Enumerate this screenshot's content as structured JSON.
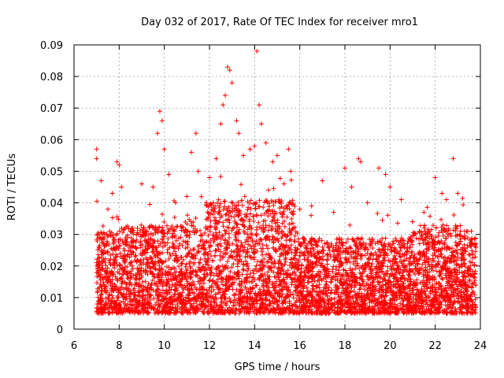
{
  "chart_data": {
    "type": "scatter",
    "title": "Day 032 of 2017, Rate Of TEC Index for receiver mro1",
    "xlabel": "GPS time / hours",
    "ylabel": "ROTI / TECUs",
    "xlim": [
      6,
      24
    ],
    "ylim": [
      0,
      0.09
    ],
    "x_ticks": [
      6,
      8,
      10,
      12,
      14,
      16,
      18,
      20,
      22,
      24
    ],
    "y_ticks": [
      0,
      0.01,
      0.02,
      0.03,
      0.04,
      0.05,
      0.06,
      0.07,
      0.08,
      0.09
    ],
    "x_tick_labels": [
      "6",
      "8",
      "10",
      "12",
      "14",
      "16",
      "18",
      "20",
      "22",
      "24"
    ],
    "y_tick_labels": [
      "0",
      "0.01",
      "0.02",
      "0.03",
      "0.04",
      "0.05",
      "0.06",
      "0.07",
      "0.08",
      "0.09"
    ],
    "grid": true,
    "marker": "+",
    "marker_color": "#ff0000",
    "data_coverage_hours": [
      7.0,
      23.8
    ],
    "series": [
      {
        "name": "ROTI",
        "points": [
          [
            7.0,
            0.057
          ],
          [
            7.0,
            0.054
          ],
          [
            7.2,
            0.047
          ],
          [
            7.5,
            0.038
          ],
          [
            7.7,
            0.043
          ],
          [
            7.9,
            0.053
          ],
          [
            8.0,
            0.052
          ],
          [
            8.1,
            0.045
          ],
          [
            8.5,
            0.031
          ],
          [
            9.0,
            0.046
          ],
          [
            9.5,
            0.045
          ],
          [
            9.7,
            0.062
          ],
          [
            9.8,
            0.069
          ],
          [
            9.9,
            0.066
          ],
          [
            10.0,
            0.057
          ],
          [
            10.2,
            0.049
          ],
          [
            10.5,
            0.04
          ],
          [
            11.0,
            0.042
          ],
          [
            11.2,
            0.056
          ],
          [
            11.4,
            0.062
          ],
          [
            11.5,
            0.05
          ],
          [
            12.0,
            0.048
          ],
          [
            12.3,
            0.054
          ],
          [
            12.5,
            0.065
          ],
          [
            12.6,
            0.071
          ],
          [
            12.7,
            0.074
          ],
          [
            12.8,
            0.083
          ],
          [
            12.9,
            0.082
          ],
          [
            13.0,
            0.078
          ],
          [
            13.2,
            0.066
          ],
          [
            13.3,
            0.062
          ],
          [
            13.5,
            0.055
          ],
          [
            13.8,
            0.057
          ],
          [
            14.0,
            0.058
          ],
          [
            14.1,
            0.088
          ],
          [
            14.2,
            0.071
          ],
          [
            14.3,
            0.065
          ],
          [
            14.5,
            0.059
          ],
          [
            14.8,
            0.053
          ],
          [
            15.0,
            0.055
          ],
          [
            15.3,
            0.046
          ],
          [
            15.5,
            0.057
          ],
          [
            15.6,
            0.05
          ],
          [
            16.0,
            0.038
          ],
          [
            16.5,
            0.036
          ],
          [
            17.0,
            0.047
          ],
          [
            17.5,
            0.037
          ],
          [
            18.0,
            0.051
          ],
          [
            18.3,
            0.045
          ],
          [
            18.6,
            0.054
          ],
          [
            18.7,
            0.053
          ],
          [
            19.0,
            0.04
          ],
          [
            19.5,
            0.051
          ],
          [
            19.8,
            0.049
          ],
          [
            20.0,
            0.045
          ],
          [
            20.5,
            0.041
          ],
          [
            21.0,
            0.034
          ],
          [
            21.5,
            0.037
          ],
          [
            22.0,
            0.048
          ],
          [
            22.3,
            0.043
          ],
          [
            22.5,
            0.041
          ],
          [
            22.8,
            0.054
          ],
          [
            23.0,
            0.043
          ],
          [
            23.3,
            0.031
          ],
          [
            23.6,
            0.031
          ],
          [
            23.8,
            0.026
          ]
        ]
      }
    ]
  }
}
